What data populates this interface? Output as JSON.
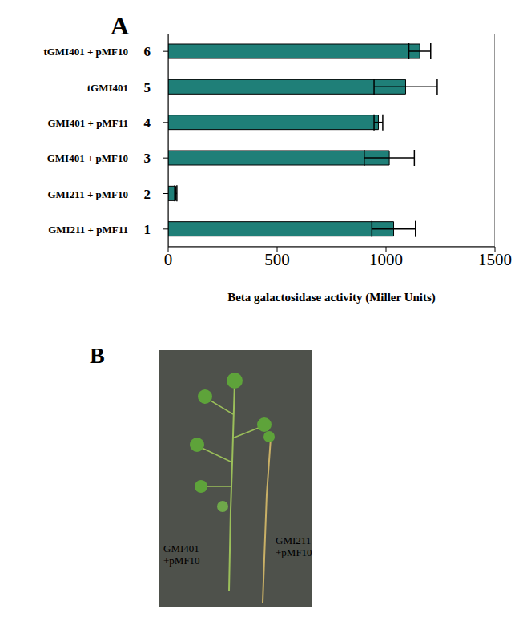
{
  "chart_data": {
    "type": "bar",
    "title": "A",
    "orientation": "horizontal",
    "categories": [
      "tGMI401 + pMF10",
      "tGMI401",
      "GMI401 + pMF11",
      "GMI401 + pMF10",
      "GMI211 + pMF10",
      "GMI211 + pMF11"
    ],
    "bar_numbers": [
      6,
      5,
      4,
      3,
      2,
      1
    ],
    "values": [
      1155,
      1090,
      965,
      1015,
      35,
      1035
    ],
    "errors": [
      50,
      145,
      20,
      115,
      5,
      100
    ],
    "color": "#1f7f78",
    "xlabel": "Beta galactosidase activity (Miller Units)",
    "xlim": [
      0,
      1500
    ],
    "xticks": [
      0,
      500,
      1000,
      1500
    ],
    "grid": false
  },
  "photo": {
    "label": "B",
    "captions": [
      [
        "GMI401",
        "+pMF10"
      ],
      [
        "GMI211",
        "+pMF10"
      ]
    ]
  }
}
